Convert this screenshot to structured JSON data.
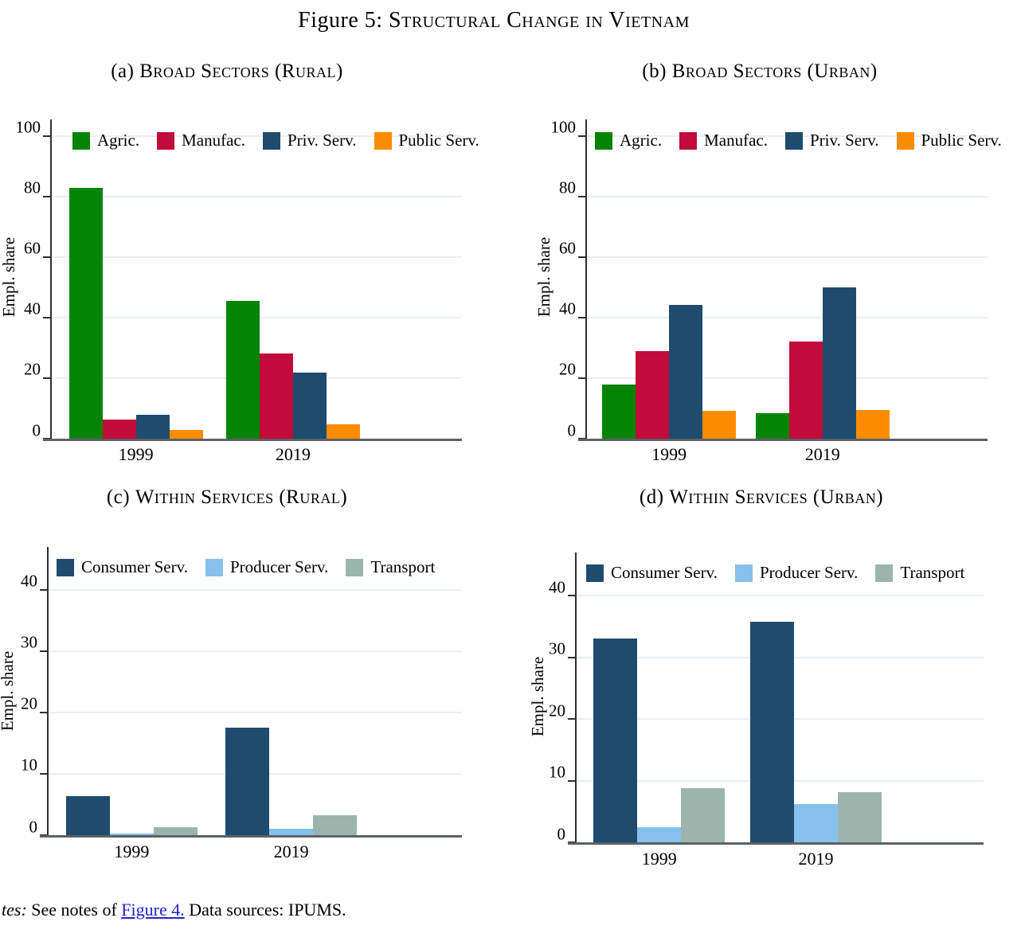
{
  "figure": {
    "title_prefix": "Figure 5:",
    "title_smallcaps": "Structural Change in Vietnam"
  },
  "notes": {
    "prefix_italic": "tes:",
    "before_link": " See notes of ",
    "link_text": "Figure 4.",
    "after_link": " Data sources: IPUMS.",
    "link_color": "#2424cc"
  },
  "colors": {
    "agriculture": "#048404",
    "manufacturing": "#c10b3a",
    "private_services": "#1f4c6e",
    "public_services": "#ff8c00",
    "consumer_services": "#1f4c6e",
    "producer_services": "#85c1ec",
    "transport": "#9ab5ac",
    "gridline": "#e9eff5",
    "axis": "#5c6166"
  },
  "chart_data": [
    {
      "type": "bar",
      "panel": "a",
      "title_prefix": "(a)",
      "title_smallcaps": "Broad Sectors (Rural)",
      "ylabel": "Empl. share",
      "categories": [
        "1999",
        "2019"
      ],
      "series": [
        {
          "name": "Agric.",
          "color": "#048404",
          "values": [
            83.0,
            45.5
          ]
        },
        {
          "name": "Manufac.",
          "color": "#c10b3a",
          "values": [
            6.2,
            28.2
          ]
        },
        {
          "name": "Priv. Serv.",
          "color": "#1f4c6e",
          "values": [
            7.8,
            21.9
          ]
        },
        {
          "name": "Public Serv.",
          "color": "#ff8c00",
          "values": [
            3.0,
            4.8
          ]
        }
      ],
      "yticks": [
        0,
        20,
        40,
        60,
        80,
        100
      ],
      "ylim": [
        0,
        105.5
      ],
      "grid": true,
      "legend_position": "top-inside"
    },
    {
      "type": "bar",
      "panel": "b",
      "title_prefix": "(b)",
      "title_smallcaps": "Broad Sectors (Urban)",
      "ylabel": "Empl. share",
      "categories": [
        "1999",
        "2019"
      ],
      "series": [
        {
          "name": "Agric.",
          "color": "#048404",
          "values": [
            18.0,
            8.5
          ]
        },
        {
          "name": "Manufac.",
          "color": "#c10b3a",
          "values": [
            29.0,
            32.0
          ]
        },
        {
          "name": "Priv. Serv.",
          "color": "#1f4c6e",
          "values": [
            44.3,
            50.0
          ]
        },
        {
          "name": "Public Serv.",
          "color": "#ff8c00",
          "values": [
            9.1,
            9.4
          ]
        }
      ],
      "yticks": [
        0,
        20,
        40,
        60,
        80,
        100
      ],
      "ylim": [
        0,
        105.5
      ],
      "grid": true,
      "legend_position": "top-inside"
    },
    {
      "type": "bar",
      "panel": "c",
      "title_prefix": "(c)",
      "title_smallcaps": "Within Services (Rural)",
      "ylabel": "Empl. share",
      "categories": [
        "1999",
        "2019"
      ],
      "series": [
        {
          "name": "Consumer Serv.",
          "color": "#1f4c6e",
          "values": [
            6.4,
            17.5
          ]
        },
        {
          "name": "Producer Serv.",
          "color": "#85c1ec",
          "values": [
            0.2,
            1.1
          ]
        },
        {
          "name": "Transport",
          "color": "#9ab5ac",
          "values": [
            1.3,
            3.2
          ]
        }
      ],
      "yticks": [
        0,
        10,
        20,
        30,
        40
      ],
      "ylim": [
        0,
        47
      ],
      "grid": true,
      "legend_position": "top-inside"
    },
    {
      "type": "bar",
      "panel": "d",
      "title_prefix": "(d)",
      "title_smallcaps": "Within Services (Urban)",
      "ylabel": "Empl. share",
      "categories": [
        "1999",
        "2019"
      ],
      "series": [
        {
          "name": "Consumer Serv.",
          "color": "#1f4c6e",
          "values": [
            33.0,
            35.8
          ]
        },
        {
          "name": "Producer Serv.",
          "color": "#85c1ec",
          "values": [
            2.4,
            6.2
          ]
        },
        {
          "name": "Transport",
          "color": "#9ab5ac",
          "values": [
            8.8,
            8.1
          ]
        }
      ],
      "yticks": [
        0,
        10,
        20,
        30,
        40
      ],
      "ylim": [
        0,
        47
      ],
      "grid": true,
      "legend_position": "top-inside"
    }
  ]
}
